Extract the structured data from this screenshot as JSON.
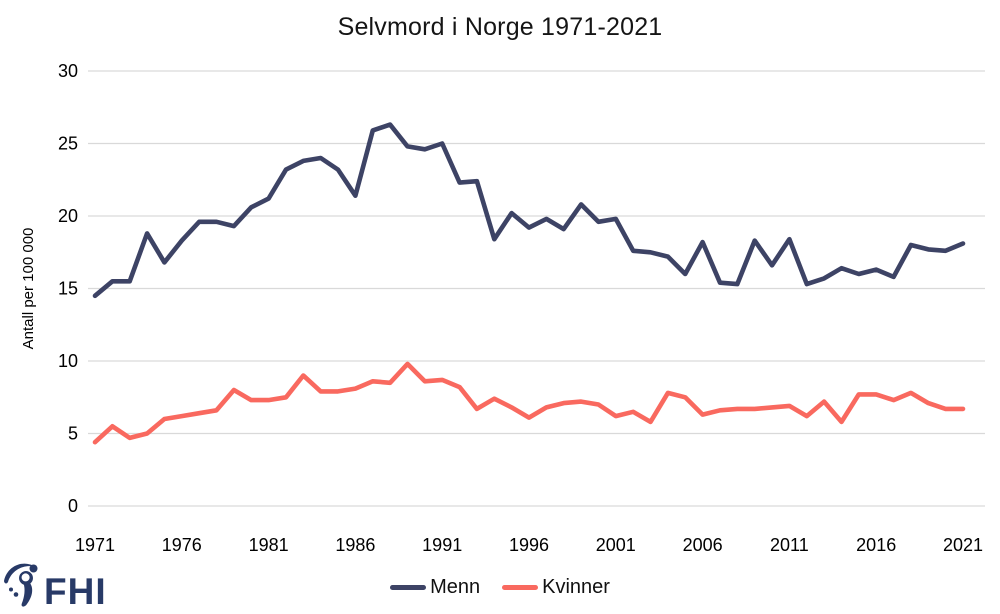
{
  "chart_data": {
    "type": "line",
    "title": "Selvmord i Norge 1971-2021",
    "xlabel": "",
    "ylabel": "Antall per 100 000",
    "ylim": [
      0,
      30
    ],
    "y_ticks": [
      0,
      5,
      10,
      15,
      20,
      25,
      30
    ],
    "x_ticks": [
      1971,
      1976,
      1981,
      1986,
      1991,
      1996,
      2001,
      2006,
      2011,
      2016,
      2021
    ],
    "grid": "horizontal",
    "legend_position": "bottom",
    "x": [
      1971,
      1972,
      1973,
      1974,
      1975,
      1976,
      1977,
      1978,
      1979,
      1980,
      1981,
      1982,
      1983,
      1984,
      1985,
      1986,
      1987,
      1988,
      1989,
      1990,
      1991,
      1992,
      1993,
      1994,
      1995,
      1996,
      1997,
      1998,
      1999,
      2000,
      2001,
      2002,
      2003,
      2004,
      2005,
      2006,
      2007,
      2008,
      2009,
      2010,
      2011,
      2012,
      2013,
      2014,
      2015,
      2016,
      2017,
      2018,
      2019,
      2020,
      2021
    ],
    "series": [
      {
        "name": "Menn",
        "color": "#3d4365",
        "values": [
          14.5,
          15.5,
          15.5,
          18.8,
          16.8,
          18.3,
          19.6,
          19.6,
          19.3,
          20.6,
          21.2,
          23.2,
          23.8,
          24.0,
          23.2,
          21.4,
          25.9,
          26.3,
          24.8,
          24.6,
          25.0,
          22.3,
          22.4,
          18.4,
          20.2,
          19.2,
          19.8,
          19.1,
          20.8,
          19.6,
          19.8,
          17.6,
          17.5,
          17.2,
          16.0,
          18.2,
          15.4,
          15.3,
          18.3,
          16.6,
          18.4,
          15.3,
          15.7,
          16.4,
          16.0,
          16.3,
          15.8,
          18.0,
          17.7,
          17.6,
          18.1
        ]
      },
      {
        "name": "Kvinner",
        "color": "#f9695f",
        "values": [
          4.4,
          5.5,
          4.7,
          5.0,
          6.0,
          6.2,
          6.4,
          6.6,
          8.0,
          7.3,
          7.3,
          7.5,
          9.0,
          7.9,
          7.9,
          8.1,
          8.6,
          8.5,
          9.8,
          8.6,
          8.7,
          8.2,
          6.7,
          7.4,
          6.8,
          6.1,
          6.8,
          7.1,
          7.2,
          7.0,
          6.2,
          6.5,
          5.8,
          7.8,
          7.5,
          6.3,
          6.6,
          6.7,
          6.7,
          6.8,
          6.9,
          6.2,
          7.2,
          5.8,
          7.7,
          7.7,
          7.3,
          7.8,
          7.1,
          6.7,
          6.7
        ]
      }
    ]
  },
  "legend": {
    "menn_label": "Menn",
    "kvinner_label": "Kvinner"
  },
  "logo": {
    "text": "FHI"
  },
  "colors": {
    "menn": "#3d4365",
    "kvinner": "#f9695f",
    "grid": "#d9d9d9",
    "logo_navy": "#283a67",
    "text": "#000000"
  }
}
